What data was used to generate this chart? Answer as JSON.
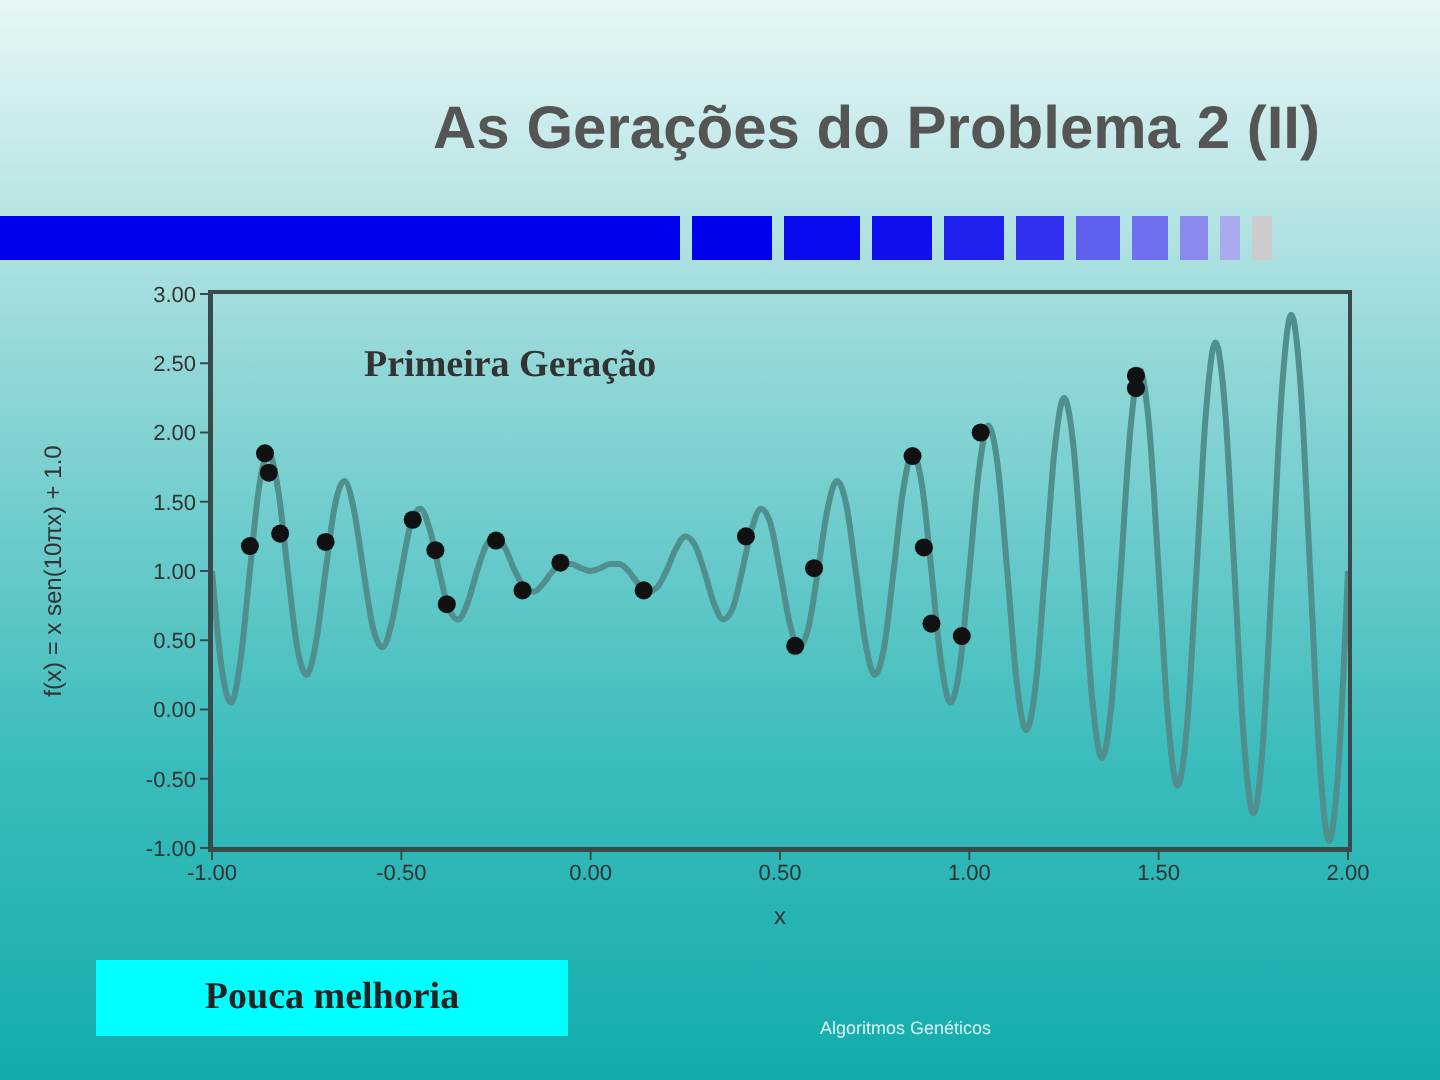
{
  "chart_data": {
    "type": "line",
    "title": "As Gerações do Problema 2 (II)",
    "xlabel": "x",
    "ylabel": "f(x) = x sen(10πx) + 1.0",
    "annotations": [
      "Primeira Geração",
      "Pouca melhoria",
      "Algoritmos Genéticos"
    ],
    "xlim": [
      -1,
      2
    ],
    "xticks": [
      {
        "value": -1,
        "label": "-1.00"
      },
      {
        "value": -0.5,
        "label": "-0.50"
      },
      {
        "value": 0,
        "label": "0.00"
      },
      {
        "value": 0.5,
        "label": "0.50"
      },
      {
        "value": 1,
        "label": "1.00"
      },
      {
        "value": 1.5,
        "label": "1.50"
      },
      {
        "value": 2,
        "label": "2.00"
      }
    ],
    "ylim": [
      -1,
      3
    ],
    "yticks": [
      {
        "value": -1,
        "label": "-1.00"
      },
      {
        "value": -0.5,
        "label": "-0.50"
      },
      {
        "value": 0,
        "label": "0.00"
      },
      {
        "value": 0.5,
        "label": "0.50"
      },
      {
        "value": 1,
        "label": "1.00"
      },
      {
        "value": 1.5,
        "label": "1.50"
      },
      {
        "value": 2,
        "label": "2.00"
      },
      {
        "value": 2.5,
        "label": "2.50"
      },
      {
        "value": 3,
        "label": "3.00"
      }
    ],
    "grid": false,
    "legend": false,
    "series": [
      {
        "color": "#4f8f8d",
        "marker": "none",
        "x": [
          -1,
          -0.975,
          -0.95,
          -0.925,
          -0.9,
          -0.875,
          -0.85,
          -0.825,
          -0.8,
          -0.775,
          -0.75,
          -0.725,
          -0.7,
          -0.675,
          -0.65,
          -0.625,
          -0.6,
          -0.575,
          -0.55,
          -0.525,
          -0.5,
          -0.475,
          -0.45,
          -0.425,
          -0.4,
          -0.375,
          -0.35,
          -0.325,
          -0.3,
          -0.275,
          -0.25,
          -0.225,
          -0.2,
          -0.175,
          -0.15,
          -0.125,
          -0.1,
          -0.075,
          -0.05,
          -0.025,
          0,
          0.025,
          0.05,
          0.075,
          0.1,
          0.125,
          0.15,
          0.175,
          0.2,
          0.225,
          0.25,
          0.275,
          0.3,
          0.325,
          0.35,
          0.375,
          0.4,
          0.425,
          0.45,
          0.475,
          0.5,
          0.525,
          0.55,
          0.575,
          0.6,
          0.625,
          0.65,
          0.675,
          0.7,
          0.725,
          0.75,
          0.775,
          0.8,
          0.825,
          0.85,
          0.875,
          0.9,
          0.925,
          0.95,
          0.975,
          1,
          1.025,
          1.05,
          1.075,
          1.1,
          1.125,
          1.15,
          1.175,
          1.2,
          1.225,
          1.25,
          1.275,
          1.3,
          1.325,
          1.35,
          1.375,
          1.4,
          1.425,
          1.45,
          1.475,
          1.5,
          1.525,
          1.55,
          1.575,
          1.6,
          1.625,
          1.65,
          1.675,
          1.7,
          1.725,
          1.75,
          1.775,
          1.8,
          1.825,
          1.85,
          1.875,
          1.9,
          1.925,
          1.95,
          1.975,
          2
        ],
        "values": [
          1,
          0.31,
          0.05,
          0.35,
          1,
          1.62,
          1.85,
          1.58,
          1,
          0.45,
          0.25,
          0.49,
          1,
          1.48,
          1.65,
          1.44,
          1,
          0.59,
          0.45,
          0.63,
          1,
          1.34,
          1.45,
          1.3,
          1,
          0.73,
          0.65,
          0.77,
          1,
          1.19,
          1.25,
          1.16,
          1,
          0.88,
          0.85,
          0.91,
          1,
          1.05,
          1.05,
          1.02,
          1,
          1.02,
          1.05,
          1.05,
          1,
          0.91,
          0.85,
          0.88,
          1,
          1.16,
          1.25,
          1.19,
          1,
          0.77,
          0.65,
          0.73,
          1,
          1.3,
          1.45,
          1.34,
          1,
          0.63,
          0.45,
          0.59,
          1,
          1.44,
          1.65,
          1.48,
          1,
          0.49,
          0.25,
          0.45,
          1,
          1.58,
          1.85,
          1.62,
          1,
          0.35,
          0.05,
          0.31,
          1,
          1.72,
          2.05,
          1.76,
          1,
          0.2,
          -0.15,
          0.17,
          1,
          1.87,
          2.25,
          1.9,
          1,
          0.06,
          -0.35,
          0.03,
          1,
          2.01,
          2.45,
          2.04,
          1,
          -0.08,
          -0.55,
          -0.11,
          1,
          2.15,
          2.65,
          2.18,
          1,
          -0.22,
          -0.75,
          -0.26,
          1,
          2.29,
          2.85,
          2.33,
          1,
          -0.36,
          -0.95,
          -0.4,
          1
        ]
      },
      {
        "type": "scatter",
        "color": "#111111",
        "marker": "circle",
        "x": [
          -0.9,
          -0.86,
          -0.85,
          -0.82,
          -0.7,
          -0.47,
          -0.41,
          -0.38,
          -0.25,
          -0.18,
          -0.08,
          0.14,
          0.41,
          0.54,
          0.59,
          0.85,
          0.88,
          0.9,
          0.98,
          1.03,
          1.44,
          1.44
        ],
        "values": [
          1.18,
          1.85,
          1.71,
          1.27,
          1.21,
          1.37,
          1.15,
          0.76,
          1.22,
          0.86,
          1.06,
          0.86,
          1.25,
          0.46,
          1.02,
          1.83,
          1.17,
          0.62,
          0.53,
          2.0,
          2.41,
          2.32
        ]
      }
    ]
  }
}
